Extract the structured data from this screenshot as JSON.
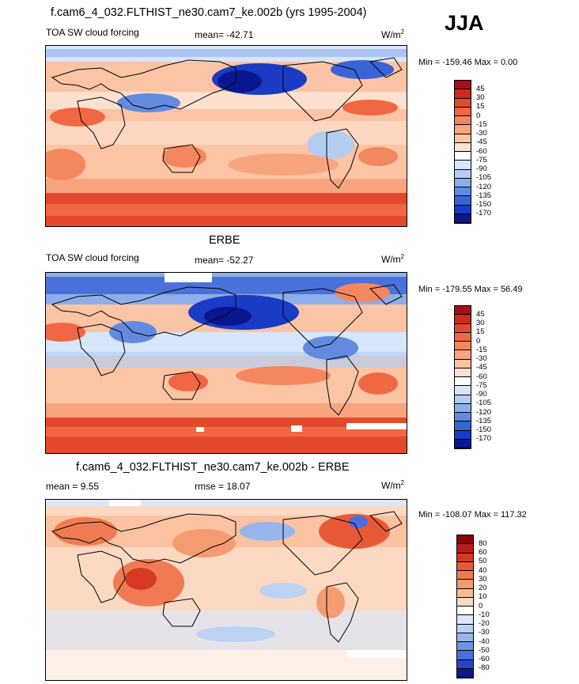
{
  "season": "JJA",
  "panels": [
    {
      "title": "f.cam6_4_032.FLTHIST_ne30.cam7_ke.002b (yrs 1995-2004)",
      "left_label": "TOA SW cloud forcing",
      "mid_label": "mean= -42.71",
      "unit_base": "W/m",
      "unit_exp": "2",
      "minmax": "Min = -159.46 Max =   0.00"
    },
    {
      "title": "ERBE",
      "left_label": "TOA SW cloud forcing",
      "mid_label": "mean= -52.27",
      "unit_base": "W/m",
      "unit_exp": "2",
      "minmax": "Min = -179.55 Max =  56.49"
    },
    {
      "title": "f.cam6_4_032.FLTHIST_ne30.cam7_ke.002b - ERBE",
      "left_label": "mean =   9.55",
      "mid_label": "rmse =  18.07",
      "unit_base": "W/m",
      "unit_exp": "2",
      "minmax": "Min = -108.07 Max = 117.32"
    }
  ],
  "chart_data": [
    {
      "type": "heatmap",
      "title": "f.cam6_4_032.FLTHIST_ne30.cam7_ke.002b (yrs 1995-2004)",
      "variable": "TOA SW cloud forcing",
      "units": "W/m2",
      "mean": -42.71,
      "min": -159.46,
      "max": 0.0,
      "colorbar_levels": [
        45,
        30,
        15,
        0,
        -15,
        -30,
        -45,
        -60,
        -75,
        -90,
        -105,
        -120,
        -135,
        -150,
        -170
      ],
      "colorbar_colors": [
        "#a50f15",
        "#cb2a1c",
        "#e34a2c",
        "#f06843",
        "#f4875e",
        "#f7a57e",
        "#fbc4a4",
        "#fde0cf",
        "#ffffff",
        "#d7e6f9",
        "#b3cdf1",
        "#8daee9",
        "#628be0",
        "#3a63d6",
        "#1a3cc4",
        "#08178f"
      ]
    },
    {
      "type": "heatmap",
      "title": "ERBE",
      "variable": "TOA SW cloud forcing",
      "units": "W/m2",
      "mean": -52.27,
      "min": -179.55,
      "max": 56.49,
      "colorbar_levels": [
        45,
        30,
        15,
        0,
        -15,
        -30,
        -45,
        -60,
        -75,
        -90,
        -105,
        -120,
        -135,
        -150,
        -170
      ],
      "colorbar_colors": [
        "#a50f15",
        "#cb2a1c",
        "#e34a2c",
        "#f06843",
        "#f4875e",
        "#f7a57e",
        "#fbc4a4",
        "#fde0cf",
        "#ffffff",
        "#d7e6f9",
        "#b3cdf1",
        "#8daee9",
        "#628be0",
        "#3a63d6",
        "#1a3cc4",
        "#08178f"
      ]
    },
    {
      "type": "heatmap",
      "title": "f.cam6_4_032.FLTHIST_ne30.cam7_ke.002b - ERBE",
      "units": "W/m2",
      "mean": 9.55,
      "rmse": 18.07,
      "min": -108.07,
      "max": 117.32,
      "colorbar_levels": [
        80,
        60,
        50,
        40,
        30,
        20,
        10,
        0,
        -10,
        -20,
        -30,
        -40,
        -50,
        -60,
        -80
      ],
      "colorbar_colors": [
        "#8b0000",
        "#b71c1c",
        "#d63a24",
        "#e85a37",
        "#f07b52",
        "#f59b72",
        "#f9bb98",
        "#fcd9c2",
        "#ffffff",
        "#dbe7fa",
        "#bcd2f3",
        "#99b6ec",
        "#6f93e3",
        "#4a6fda",
        "#2447c8",
        "#0a1a8c"
      ]
    }
  ]
}
